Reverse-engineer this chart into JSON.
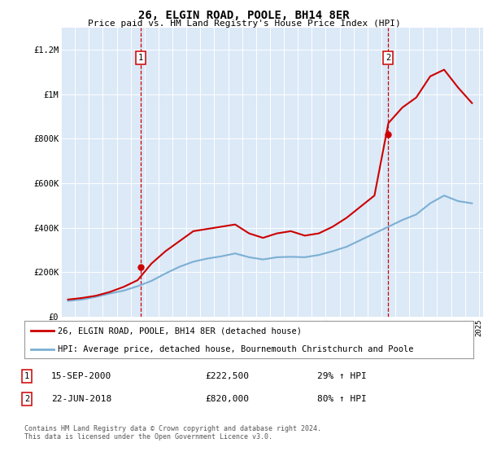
{
  "title": "26, ELGIN ROAD, POOLE, BH14 8ER",
  "subtitle": "Price paid vs. HM Land Registry's House Price Index (HPI)",
  "background_color": "#dce9f7",
  "line1_color": "#cc0000",
  "line2_color": "#7bafd4",
  "ylim": [
    0,
    1300000
  ],
  "yticks": [
    0,
    200000,
    400000,
    600000,
    800000,
    1000000,
    1200000
  ],
  "ytick_labels": [
    "£0",
    "£200K",
    "£400K",
    "£600K",
    "£800K",
    "£1M",
    "£1.2M"
  ],
  "sale1_year": 2000.71,
  "sale1_price": 222500,
  "sale2_year": 2018.47,
  "sale2_price": 820000,
  "sale1_date": "15-SEP-2000",
  "sale1_amount": "£222,500",
  "sale1_hpi": "29% ↑ HPI",
  "sale2_date": "22-JUN-2018",
  "sale2_amount": "£820,000",
  "sale2_hpi": "80% ↑ HPI",
  "legend1": "26, ELGIN ROAD, POOLE, BH14 8ER (detached house)",
  "legend2": "HPI: Average price, detached house, Bournemouth Christchurch and Poole",
  "footer": "Contains HM Land Registry data © Crown copyright and database right 2024.\nThis data is licensed under the Open Government Licence v3.0.",
  "hpi_years": [
    1995.5,
    1996.5,
    1997.5,
    1998.5,
    1999.5,
    2000.5,
    2001.5,
    2002.5,
    2003.5,
    2004.5,
    2005.5,
    2006.5,
    2007.5,
    2008.5,
    2009.5,
    2010.5,
    2011.5,
    2012.5,
    2013.5,
    2014.5,
    2015.5,
    2016.5,
    2017.5,
    2018.5,
    2019.5,
    2020.5,
    2021.5,
    2022.5,
    2023.5,
    2024.5
  ],
  "hpi_values": [
    72000,
    78000,
    90000,
    105000,
    118000,
    138000,
    162000,
    195000,
    225000,
    248000,
    262000,
    272000,
    285000,
    268000,
    258000,
    268000,
    270000,
    268000,
    278000,
    295000,
    315000,
    345000,
    375000,
    405000,
    435000,
    460000,
    510000,
    545000,
    520000,
    510000
  ],
  "price_years": [
    1995.5,
    1996.5,
    1997.5,
    1998.5,
    1999.5,
    2000.5,
    2001.5,
    2002.5,
    2003.5,
    2004.5,
    2005.5,
    2006.5,
    2007.5,
    2008.5,
    2009.5,
    2010.5,
    2011.5,
    2012.5,
    2013.5,
    2014.5,
    2015.5,
    2016.5,
    2017.5,
    2018.5,
    2019.5,
    2020.5,
    2021.5,
    2022.5,
    2023.5,
    2024.5
  ],
  "price_values": [
    78000,
    85000,
    95000,
    112000,
    135000,
    165000,
    240000,
    295000,
    340000,
    385000,
    395000,
    405000,
    415000,
    375000,
    355000,
    375000,
    385000,
    365000,
    375000,
    405000,
    445000,
    495000,
    545000,
    870000,
    940000,
    985000,
    1080000,
    1110000,
    1030000,
    960000
  ]
}
